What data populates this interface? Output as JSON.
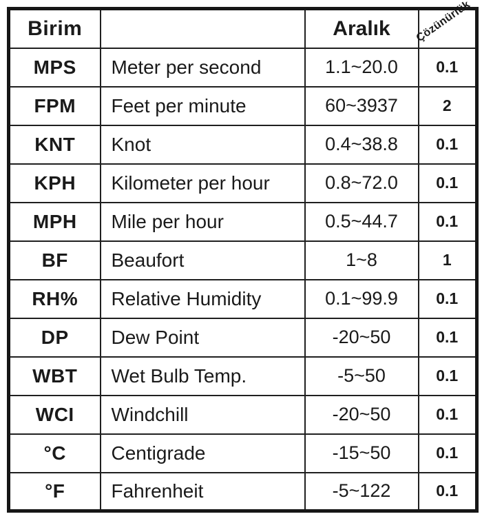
{
  "table": {
    "columns": [
      {
        "key": "unit",
        "label": "Birim"
      },
      {
        "key": "description",
        "label": ""
      },
      {
        "key": "range",
        "label": "Aralık"
      },
      {
        "key": "resolution",
        "label": "Çözünürlük"
      }
    ],
    "rows": [
      {
        "unit": "MPS",
        "description": "Meter per second",
        "range": "1.1~20.0",
        "resolution": "0.1"
      },
      {
        "unit": "FPM",
        "description": "Feet per minute",
        "range": "60~3937",
        "resolution": "2"
      },
      {
        "unit": "KNT",
        "description": "Knot",
        "range": "0.4~38.8",
        "resolution": "0.1"
      },
      {
        "unit": "KPH",
        "description": "Kilometer per hour",
        "range": "0.8~72.0",
        "resolution": "0.1"
      },
      {
        "unit": "MPH",
        "description": "Mile per hour",
        "range": "0.5~44.7",
        "resolution": "0.1"
      },
      {
        "unit": "BF",
        "description": "Beaufort",
        "range": "1~8",
        "resolution": "1"
      },
      {
        "unit": "RH%",
        "description": "Relative Humidity",
        "range": "0.1~99.9",
        "resolution": "0.1"
      },
      {
        "unit": "DP",
        "description": "Dew Point",
        "range": "-20~50",
        "resolution": "0.1"
      },
      {
        "unit": "WBT",
        "description": "Wet Bulb Temp.",
        "range": "-5~50",
        "resolution": "0.1"
      },
      {
        "unit": "WCI",
        "description": "Windchill",
        "range": "-20~50",
        "resolution": "0.1"
      },
      {
        "unit": "°C",
        "description": "Centigrade",
        "range": "-15~50",
        "resolution": "0.1"
      },
      {
        "unit": "°F",
        "description": "Fahrenheit",
        "range": "-5~122",
        "resolution": "0.1"
      }
    ],
    "colors": {
      "border": "#1a1a1a",
      "text": "#1a1a1a",
      "background": "#ffffff"
    }
  }
}
